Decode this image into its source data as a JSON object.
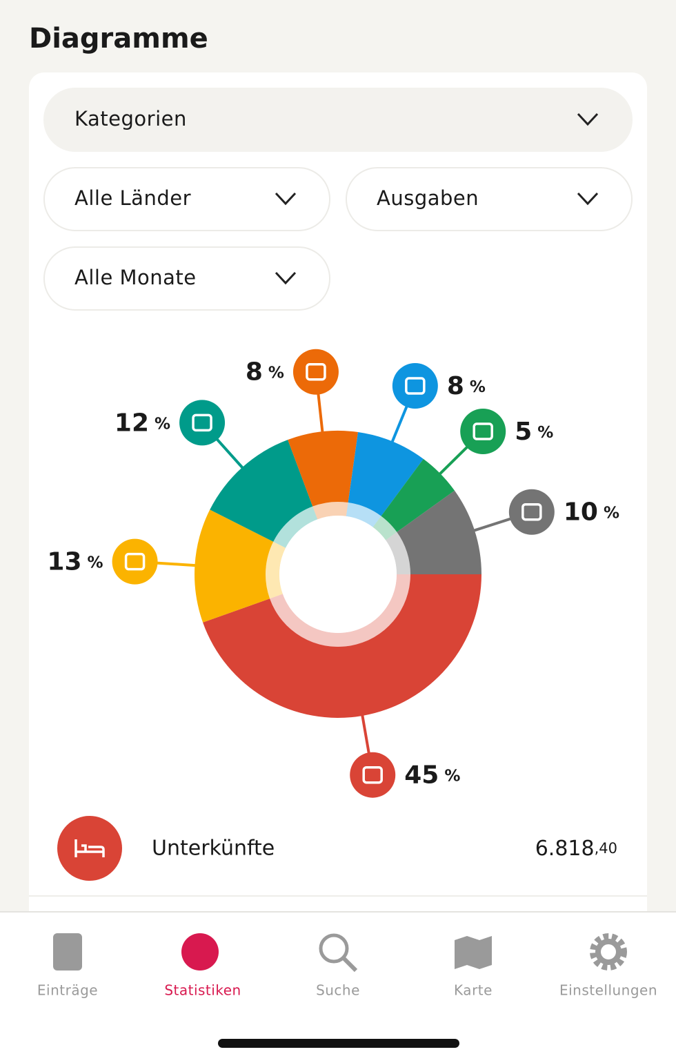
{
  "header": {
    "title": "Diagramme"
  },
  "filters": {
    "group": "Kategorien",
    "country": "Alle Länder",
    "kind": "Ausgaben",
    "month": "Alle Monate"
  },
  "chart_data": {
    "type": "pie",
    "donut": true,
    "unit": "%",
    "categories": [
      null,
      null,
      null,
      null,
      null,
      null,
      null
    ],
    "values": [
      45,
      13,
      12,
      8,
      8,
      5,
      10
    ],
    "colors": [
      "#d94436",
      "#fbb300",
      "#009b8a",
      "#ec6a08",
      "#0e95e0",
      "#18a055",
      "#747474"
    ]
  },
  "list": {
    "items": [
      {
        "label": "Unterkünfte",
        "amount": "6.818",
        "cents": ",40"
      }
    ]
  },
  "tabbar": {
    "items": [
      "Einträge",
      "Statistiken",
      "Suche",
      "Karte",
      "Einstellungen"
    ],
    "active": 1
  }
}
